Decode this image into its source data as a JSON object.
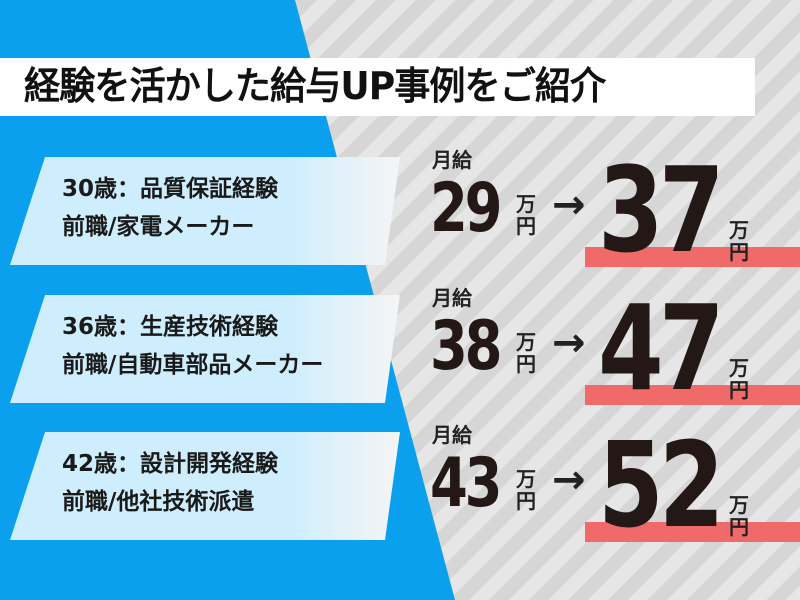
{
  "title": "経験を活かした給与UP事例をご紹介",
  "colors": {
    "blue": "#0aa0ee",
    "card": "#cfeefd",
    "highlight": "#f06a6a",
    "text": "#231815"
  },
  "salary_label": "月給",
  "unit": [
    "万",
    "円"
  ],
  "arrow": "→",
  "cases": [
    {
      "line1": "30歳：品質保証経験",
      "line2": "前職/家電メーカー",
      "before": "29",
      "after": "37"
    },
    {
      "line1": "36歳：生産技術経験",
      "line2": "前職/自動車部品メーカー",
      "before": "38",
      "after": "47"
    },
    {
      "line1": "42歳：設計開発経験",
      "line2": "前職/他社技術派遣",
      "before": "43",
      "after": "52"
    }
  ]
}
